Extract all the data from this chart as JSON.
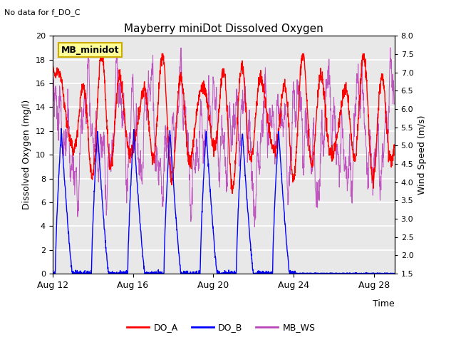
{
  "title": "Mayberry miniDot Dissolved Oxygen",
  "top_left_note": "No data for f_DO_C",
  "legend_box_label": "MB_minidot",
  "xlabel": "Time",
  "ylabel_left": "Dissolved Oxygen (mg/l)",
  "ylabel_right": "Wind Speed (m/s)",
  "ylim_left": [
    0,
    20
  ],
  "ylim_right": [
    1.5,
    8.0
  ],
  "yticks_left": [
    0,
    2,
    4,
    6,
    8,
    10,
    12,
    14,
    16,
    18,
    20
  ],
  "yticks_right": [
    1.5,
    2.0,
    2.5,
    3.0,
    3.5,
    4.0,
    4.5,
    5.0,
    5.5,
    6.0,
    6.5,
    7.0,
    7.5,
    8.0
  ],
  "xticklabels": [
    "Aug 12",
    "Aug 16",
    "Aug 20",
    "Aug 24",
    "Aug 28"
  ],
  "xtick_positions": [
    0,
    4,
    8,
    12,
    16
  ],
  "n_days": 17,
  "colors": {
    "DO_A": "#ff0000",
    "DO_B": "#0000ff",
    "MB_WS": "#bb44bb",
    "plot_bg": "#e8e8e8",
    "grid_line": "#ffffff"
  },
  "line_widths": {
    "DO_A": 1.0,
    "DO_B": 1.0,
    "MB_WS": 0.7
  },
  "legend_entries": [
    "DO_A",
    "DO_B",
    "MB_WS"
  ],
  "legend_colors": [
    "#ff0000",
    "#0000ff",
    "#bb44bb"
  ],
  "ws_min": 1.5,
  "ws_max": 8.0,
  "do_min": 0,
  "do_max": 20,
  "figsize": [
    6.4,
    4.8
  ],
  "dpi": 100
}
